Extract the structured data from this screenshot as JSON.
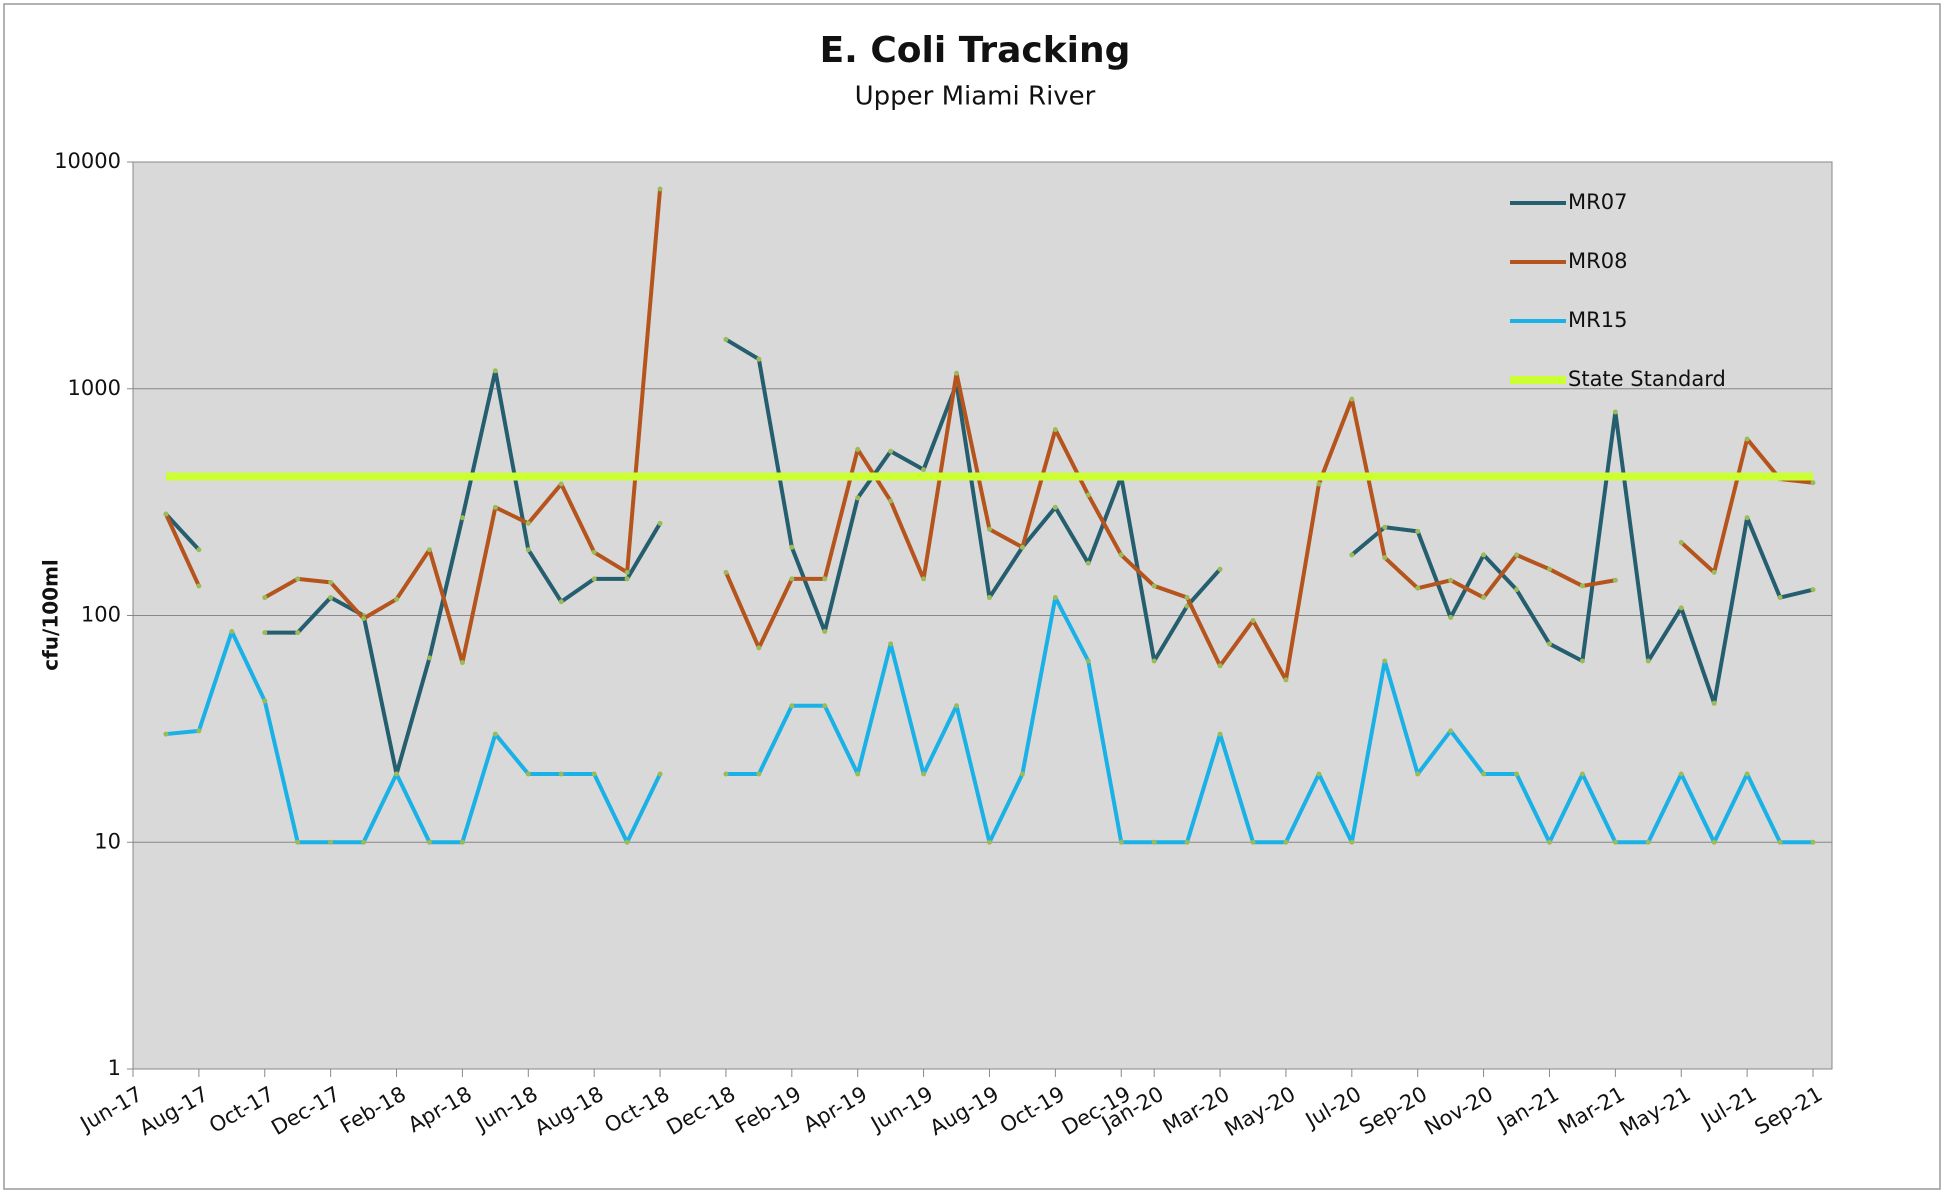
{
  "chart_data": {
    "type": "line",
    "title": "E. Coli Tracking",
    "subtitle": "Upper Miami River",
    "y_label": "cfu/100ml",
    "x": [
      "Jul-17",
      "Aug-17",
      "Sep-17",
      "Oct-17",
      "Nov-17",
      "Dec-17",
      "Jan-18",
      "Feb-18",
      "Mar-18",
      "Apr-18",
      "May-18",
      "Jun-18",
      "Jul-18",
      "Aug-18",
      "Sep-18",
      "Oct-18",
      "Nov-18",
      "Dec-18",
      "Jan-19",
      "Feb-19",
      "Mar-19",
      "Apr-19",
      "May-19",
      "Jun-19",
      "Jul-19",
      "Aug-19",
      "Sep-19",
      "Oct-19",
      "Nov-19",
      "Dec-19",
      "Jan-20",
      "Feb-20",
      "Mar-20",
      "Apr-20",
      "May-20",
      "Jun-20",
      "Jul-20",
      "Aug-20",
      "Sep-20",
      "Oct-20",
      "Nov-20",
      "Dec-20",
      "Jan-21",
      "Feb-21",
      "Mar-21",
      "Apr-21",
      "May-21",
      "Jun-21",
      "Jul-21",
      "Aug-21",
      "Sep-21"
    ],
    "series": [
      {
        "name": "MR07",
        "color": "#255e6f",
        "values": [
          280,
          195,
          null,
          84,
          84,
          120,
          100,
          20,
          65,
          270,
          1200,
          195,
          115,
          145,
          145,
          255,
          null,
          1650,
          1350,
          200,
          85,
          330,
          530,
          440,
          1050,
          120,
          200,
          300,
          170,
          410,
          63,
          110,
          160,
          null,
          null,
          null,
          185,
          245,
          235,
          98,
          185,
          130,
          75,
          63,
          790,
          63,
          108,
          41,
          270,
          120,
          130
        ]
      },
      {
        "name": "MR08",
        "color": "#b5541c",
        "values": [
          280,
          135,
          null,
          120,
          145,
          140,
          97,
          118,
          195,
          62,
          300,
          255,
          380,
          190,
          155,
          7600,
          null,
          155,
          72,
          145,
          145,
          540,
          320,
          145,
          1170,
          240,
          200,
          660,
          340,
          185,
          135,
          120,
          60,
          95,
          52,
          380,
          900,
          180,
          132,
          143,
          120,
          185,
          160,
          135,
          143,
          null,
          210,
          155,
          600,
          400,
          385
        ]
      },
      {
        "name": "MR15",
        "color": "#1ab1e6",
        "values": [
          30,
          31,
          85,
          42,
          10,
          10,
          10,
          20,
          10,
          10,
          30,
          20,
          20,
          20,
          10,
          20,
          null,
          20,
          20,
          40,
          40,
          20,
          75,
          20,
          40,
          10,
          20,
          120,
          63,
          10,
          10,
          10,
          30,
          10,
          10,
          20,
          10,
          63,
          20,
          31,
          20,
          20,
          10,
          20,
          10,
          10,
          20,
          10,
          20,
          10,
          10
        ]
      },
      {
        "name": "State Standard",
        "color": "#ccff33",
        "values": [
          410,
          410,
          410,
          410,
          410,
          410,
          410,
          410,
          410,
          410,
          410,
          410,
          410,
          410,
          410,
          410,
          410,
          410,
          410,
          410,
          410,
          410,
          410,
          410,
          410,
          410,
          410,
          410,
          410,
          410,
          410,
          410,
          410,
          410,
          410,
          410,
          410,
          410,
          410,
          410,
          410,
          410,
          410,
          410,
          410,
          410,
          410,
          410,
          410,
          410,
          410
        ]
      }
    ],
    "xlim": [
      "Jun-17",
      "Sep-21"
    ],
    "xticks": [
      "Jun-17",
      "Aug-17",
      "Oct-17",
      "Dec-17",
      "Feb-18",
      "Apr-18",
      "Jun-18",
      "Aug-18",
      "Oct-18",
      "Dec-18",
      "Feb-19",
      "Apr-19",
      "Jun-19",
      "Aug-19",
      "Oct-19",
      "Dec-19",
      "Jan-20",
      "Mar-20",
      "May-20",
      "Jul-20",
      "Sep-20",
      "Nov-20",
      "Jan-21",
      "Mar-21",
      "May-21",
      "Jul-21",
      "Sep-21"
    ],
    "ylim": [
      1,
      10000
    ],
    "yticks": [
      1,
      10,
      100,
      1000,
      10000
    ],
    "y_scale": "log",
    "grid": true,
    "legend": "upper right"
  }
}
